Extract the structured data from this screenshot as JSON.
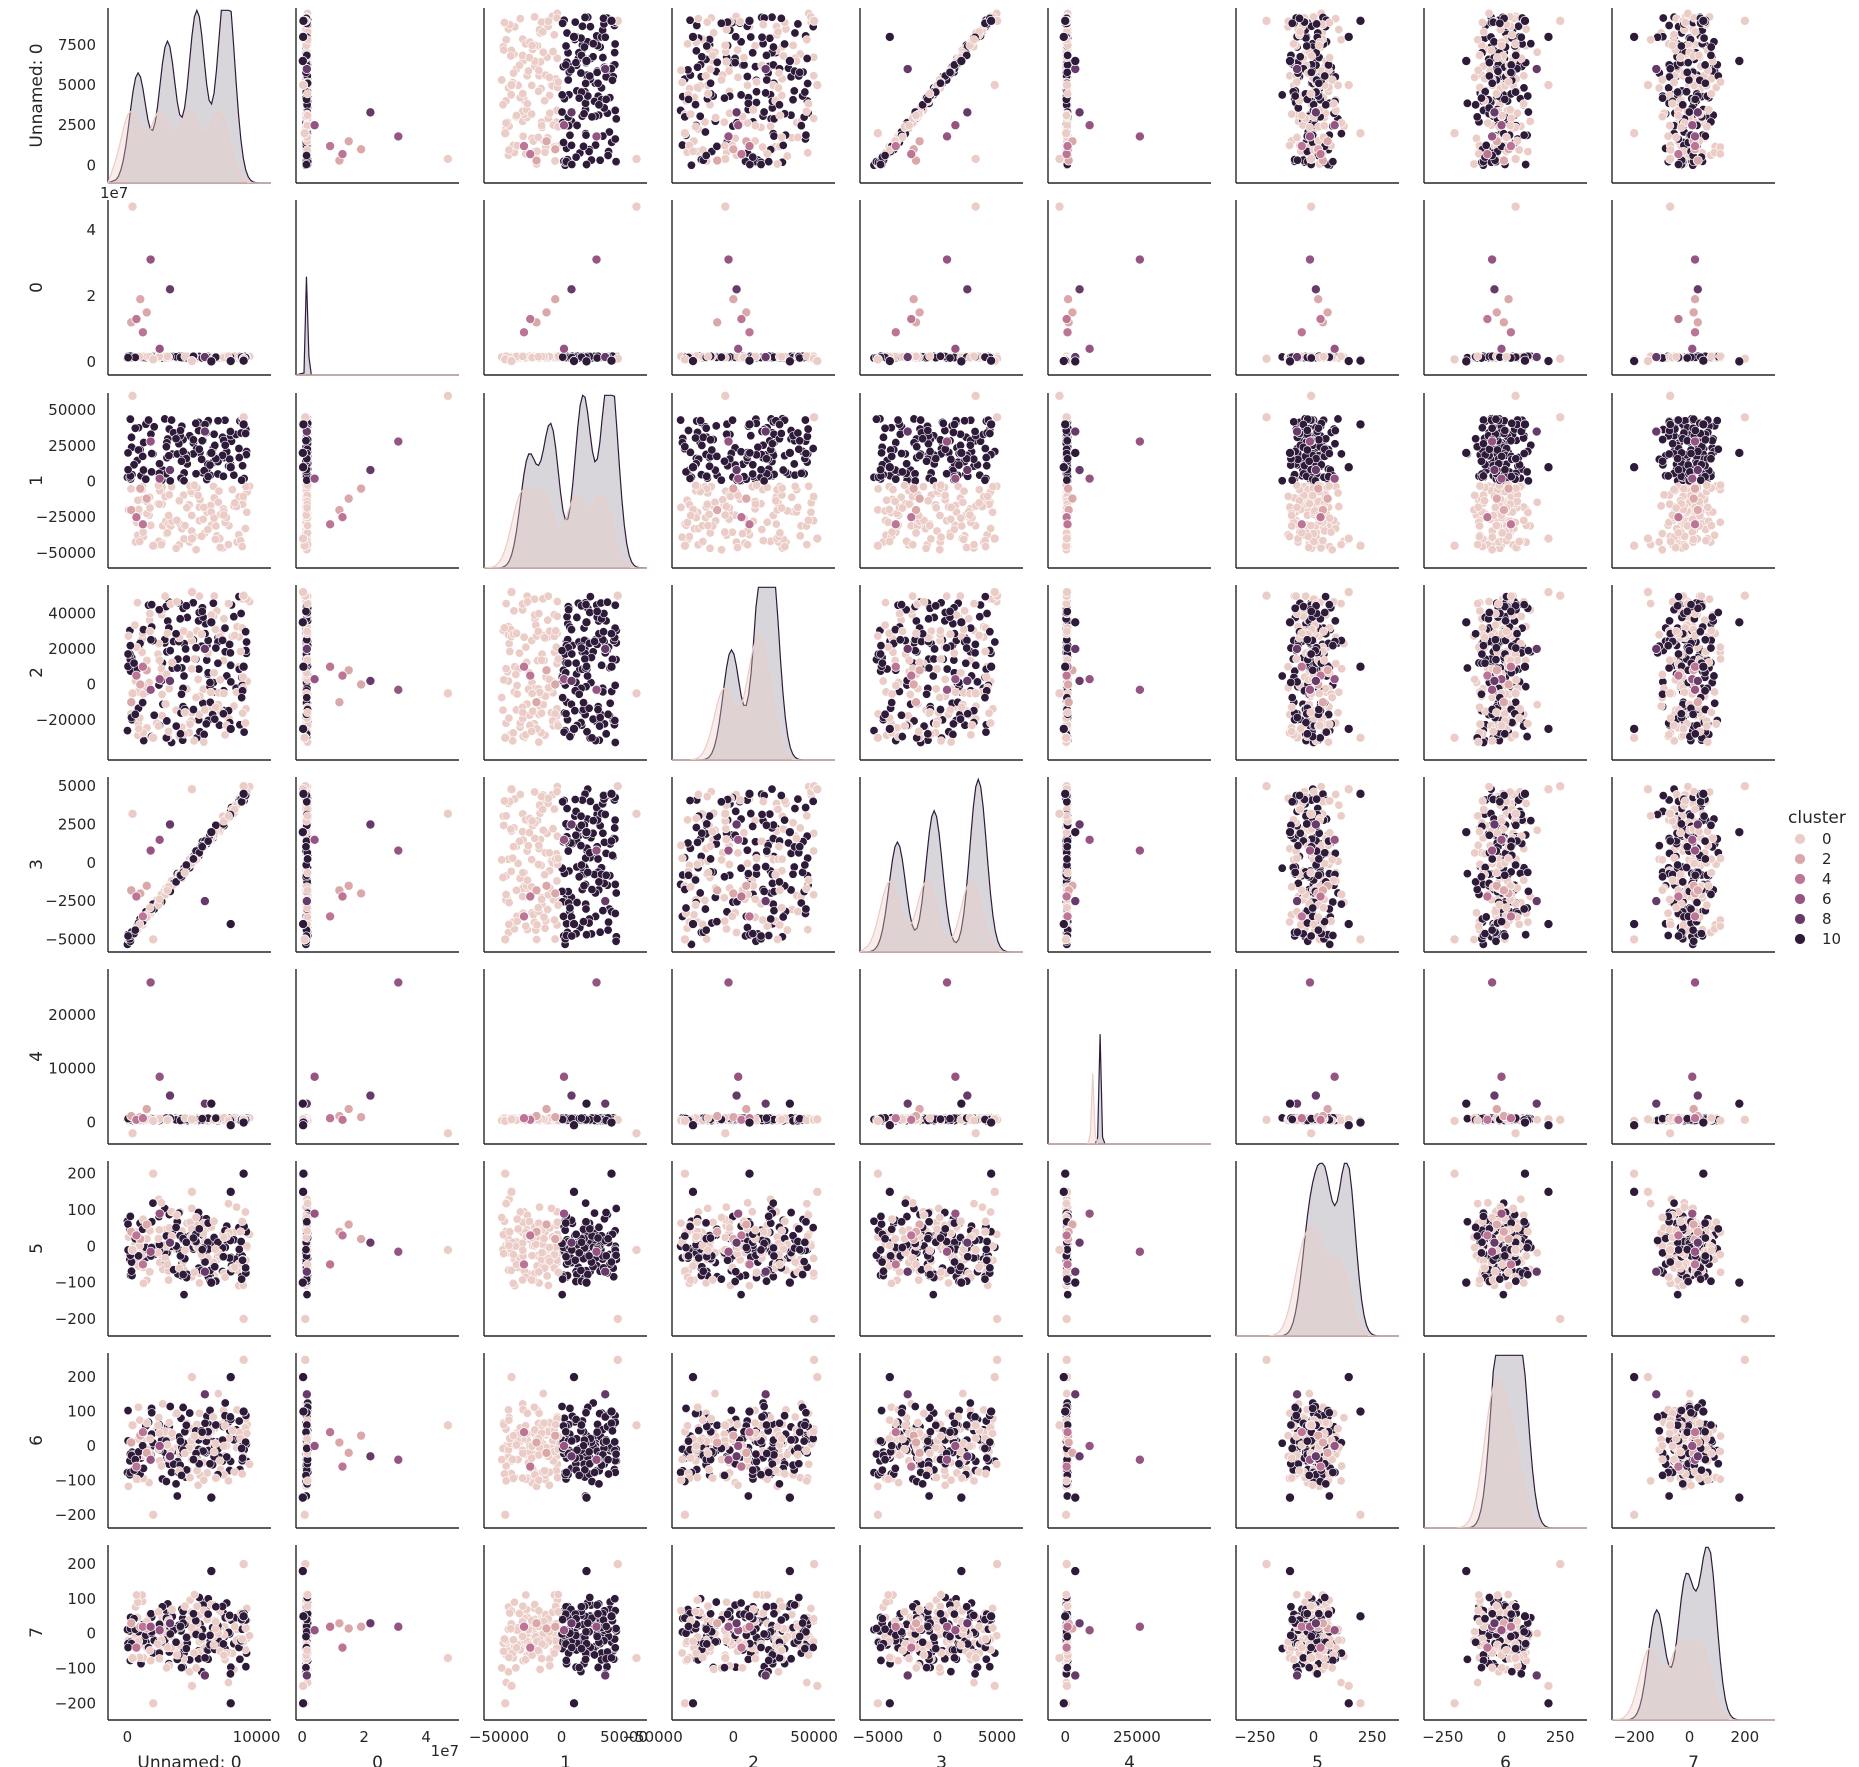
{
  "chart_data": {
    "type": "scatter",
    "variant": "pairplot-matrix",
    "grid": false,
    "legend_position": "right",
    "variables": [
      "Unnamed: 0",
      "0",
      "1",
      "2",
      "3",
      "4",
      "5",
      "6",
      "7"
    ],
    "ranges": [
      [
        -1500,
        10500
      ],
      [
        -2000000,
        48000000
      ],
      [
        -62000,
        62000
      ],
      [
        -38000,
        58000
      ],
      [
        -6500,
        6500
      ],
      [
        -6000,
        48000
      ],
      [
        -330,
        330
      ],
      [
        -330,
        330
      ],
      [
        -280,
        280
      ]
    ],
    "y_ranges": [
      [
        -600,
        9800
      ],
      [
        -1500000,
        49000000
      ],
      [
        -55000,
        62000
      ],
      [
        -38000,
        56000
      ],
      [
        -5300,
        5600
      ],
      [
        -2500,
        28500
      ],
      [
        -225,
        235
      ],
      [
        -215,
        270
      ],
      [
        -225,
        255
      ]
    ],
    "ticks": [
      {
        "values": [
          0,
          10000
        ],
        "labels": [
          "0",
          "10000"
        ],
        "offset": ""
      },
      {
        "values": [
          0,
          20000000,
          40000000
        ],
        "labels": [
          "0",
          "2",
          "4"
        ],
        "offset": "1e7"
      },
      {
        "values": [
          -50000,
          0,
          50000
        ],
        "labels": [
          "−50000",
          "0",
          "50000"
        ],
        "offset": ""
      },
      {
        "values": [
          -50000,
          0,
          50000
        ],
        "labels": [
          "−50000",
          "0",
          "50000"
        ],
        "offset": ""
      },
      {
        "values": [
          -5000,
          0,
          5000
        ],
        "labels": [
          "−5000",
          "0",
          "5000"
        ],
        "offset": ""
      },
      {
        "values": [
          0,
          25000
        ],
        "labels": [
          "0",
          "25000"
        ],
        "offset": ""
      },
      {
        "values": [
          -250,
          0,
          250
        ],
        "labels": [
          "−250",
          "0",
          "250"
        ],
        "offset": ""
      },
      {
        "values": [
          -250,
          0,
          250
        ],
        "labels": [
          "−250",
          "0",
          "250"
        ],
        "offset": ""
      },
      {
        "values": [
          -200,
          0,
          200
        ],
        "labels": [
          "−200",
          "0",
          "200"
        ],
        "offset": ""
      }
    ],
    "y_ticks": [
      {
        "values": [
          0,
          2500,
          5000,
          7500
        ],
        "labels": [
          "0",
          "2500",
          "5000",
          "7500"
        ],
        "offset": ""
      },
      {
        "values": [
          0,
          20000000,
          40000000
        ],
        "labels": [
          "0",
          "2",
          "4"
        ],
        "offset": "1e7"
      },
      {
        "values": [
          -50000,
          -25000,
          0,
          25000,
          50000
        ],
        "labels": [
          "−50000",
          "−25000",
          "0",
          "25000",
          "50000"
        ],
        "offset": ""
      },
      {
        "values": [
          -20000,
          0,
          20000,
          40000
        ],
        "labels": [
          "−20000",
          "0",
          "20000",
          "40000"
        ],
        "offset": ""
      },
      {
        "values": [
          -5000,
          -2500,
          0,
          2500,
          5000
        ],
        "labels": [
          "−5000",
          "−2500",
          "0",
          "2500",
          "5000"
        ],
        "offset": ""
      },
      {
        "values": [
          0,
          10000,
          20000
        ],
        "labels": [
          "0",
          "10000",
          "20000"
        ],
        "offset": ""
      },
      {
        "values": [
          -200,
          -100,
          0,
          100,
          200
        ],
        "labels": [
          "−200",
          "−100",
          "0",
          "100",
          "200"
        ],
        "offset": ""
      },
      {
        "values": [
          -200,
          -100,
          0,
          100,
          200
        ],
        "labels": [
          "−200",
          "−100",
          "0",
          "100",
          "200"
        ],
        "offset": ""
      },
      {
        "values": [
          -200,
          -100,
          0,
          100,
          200
        ],
        "labels": [
          "−200",
          "−100",
          "0",
          "100",
          "200"
        ],
        "offset": ""
      }
    ],
    "legend": {
      "title": "cluster",
      "entries": [
        {
          "label": "0",
          "color": "#ebccc6"
        },
        {
          "label": "2",
          "color": "#dba8a9"
        },
        {
          "label": "4",
          "color": "#bd7596"
        },
        {
          "label": "6",
          "color": "#955482"
        },
        {
          "label": "8",
          "color": "#663a69"
        },
        {
          "label": "10",
          "color": "#2e1b3a"
        }
      ]
    },
    "series": [
      {
        "name": "0",
        "color": "#ebccc6",
        "points": [
          [
            400,
            47000000,
            60000,
            -5000,
            3200,
            -2000,
            -10,
            60,
            -70
          ],
          [
            9000,
            1000000,
            45000,
            50000,
            5000,
            500,
            -200,
            250,
            200
          ],
          [
            2000,
            800000,
            -45000,
            -30000,
            -5000,
            300,
            200,
            -200,
            -200
          ],
          [
            5000,
            300000,
            -40000,
            52000,
            4800,
            600,
            150,
            200,
            -150
          ]
        ]
      },
      {
        "name": "2",
        "color": "#dba8a9",
        "points": [
          [
            1000,
            19000000,
            -5000,
            0,
            -2000,
            1000,
            20,
            30,
            20
          ],
          [
            1500,
            15000000,
            -12000,
            8000,
            -1500,
            2500,
            60,
            -20,
            15
          ],
          [
            300,
            12000000,
            -20000,
            -10000,
            -1800,
            1200,
            40,
            10,
            30
          ]
        ]
      },
      {
        "name": "4",
        "color": "#bd7596",
        "points": [
          [
            700,
            13000000,
            -25000,
            5000,
            -2200,
            500,
            30,
            -60,
            -40
          ],
          [
            1200,
            9000000,
            -30000,
            10000,
            -3500,
            800,
            -50,
            40,
            20
          ]
        ]
      },
      {
        "name": "6",
        "color": "#955482",
        "points": [
          [
            1800,
            31000000,
            28000,
            -3000,
            800,
            26000,
            -15,
            -40,
            20
          ],
          [
            2500,
            4000000,
            2000,
            3000,
            1500,
            8500,
            90,
            0,
            10
          ]
        ]
      },
      {
        "name": "8",
        "color": "#663a69",
        "points": [
          [
            3300,
            22000000,
            8000,
            2000,
            2500,
            5000,
            10,
            -30,
            30
          ],
          [
            6000,
            1500000,
            35000,
            20000,
            -2500,
            3500,
            -70,
            150,
            -120
          ]
        ]
      },
      {
        "name": "10",
        "color": "#2e1b3a",
        "points": [
          [
            9000,
            400000,
            40000,
            10000,
            4500,
            0,
            200,
            100,
            50
          ],
          [
            6500,
            200000,
            20000,
            35000,
            2000,
            3500,
            -100,
            -150,
            180
          ],
          [
            8000,
            300000,
            10000,
            -25000,
            -4000,
            -500,
            150,
            200,
            -200
          ]
        ]
      }
    ]
  }
}
